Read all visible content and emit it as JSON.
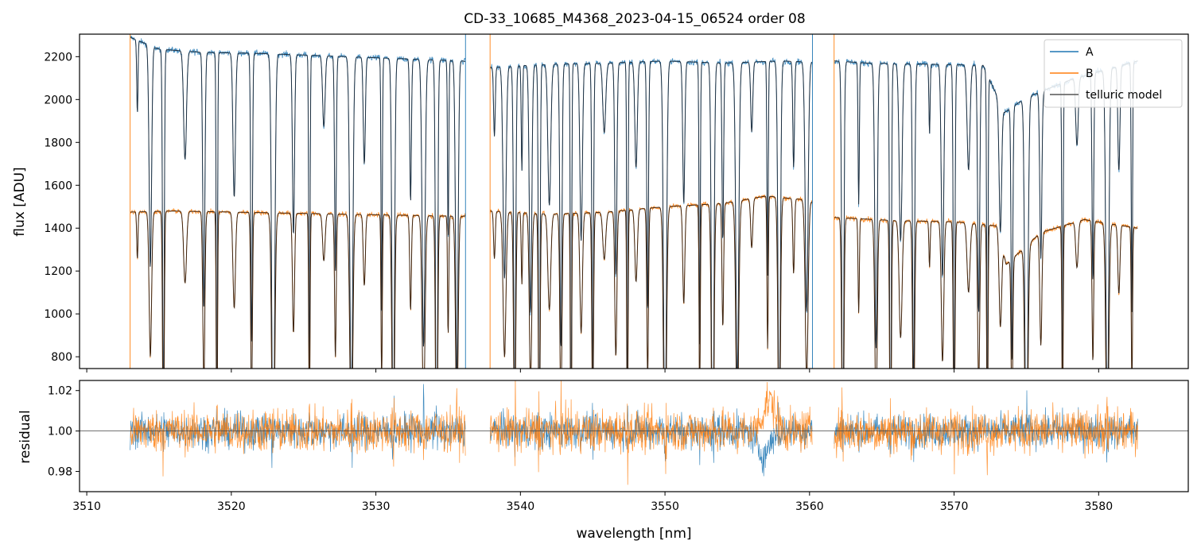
{
  "figure": {
    "title": "CD-33_10685_M4368_2023-04-15_06524  order 08"
  },
  "colors": {
    "A": "#1f77b4",
    "B": "#ff7f0e",
    "telluric_A": "#1f3040",
    "telluric_B": "#3b2412",
    "legend_telluric": "#555555",
    "reference_line": "#444444"
  },
  "chart_data": [
    {
      "type": "line",
      "title": "CD-33_10685_M4368_2023-04-15_06524  order 08",
      "xlabel": "",
      "ylabel": "flux [ADU]",
      "xlim": [
        3509.5,
        3586.2
      ],
      "ylim": [
        745,
        2305
      ],
      "y_ticks": [
        800,
        1000,
        1200,
        1400,
        1600,
        1800,
        2000,
        2200
      ],
      "grid": false,
      "legend": {
        "position": "top-right",
        "entries": [
          "A",
          "B",
          "telluric model"
        ]
      },
      "gaps_nm": [
        [
          3536.2,
          3537.9
        ],
        [
          3560.2,
          3561.7
        ]
      ],
      "series": [
        {
          "name": "A",
          "x_range": [
            3513.0,
            3582.7
          ],
          "continuum": [
            [
              3513.0,
              2290
            ],
            [
              3515.0,
              2235
            ],
            [
              3518.0,
              2220
            ],
            [
              3522.0,
              2215
            ],
            [
              3526.0,
              2205
            ],
            [
              3530.0,
              2195
            ],
            [
              3534.0,
              2185
            ],
            [
              3536.0,
              2180
            ],
            [
              3538.0,
              2150
            ],
            [
              3542.0,
              2165
            ],
            [
              3546.0,
              2170
            ],
            [
              3550.0,
              2180
            ],
            [
              3554.0,
              2170
            ],
            [
              3558.0,
              2180
            ],
            [
              3560.0,
              2175
            ],
            [
              3561.7,
              2180
            ],
            [
              3564.0,
              2170
            ],
            [
              3568.0,
              2165
            ],
            [
              3572.0,
              2160
            ],
            [
              3573.5,
              1940
            ],
            [
              3575.0,
              2010
            ],
            [
              3578.0,
              2090
            ],
            [
              3580.0,
              2130
            ],
            [
              3582.7,
              2180
            ]
          ]
        },
        {
          "name": "B",
          "x_range": [
            3513.0,
            3582.7
          ],
          "continuum": [
            [
              3513.0,
              1475
            ],
            [
              3516.0,
              1480
            ],
            [
              3520.0,
              1475
            ],
            [
              3524.0,
              1470
            ],
            [
              3528.0,
              1465
            ],
            [
              3532.0,
              1460
            ],
            [
              3536.0,
              1455
            ],
            [
              3538.0,
              1480
            ],
            [
              3542.0,
              1465
            ],
            [
              3546.0,
              1475
            ],
            [
              3550.0,
              1500
            ],
            [
              3554.0,
              1515
            ],
            [
              3557.0,
              1550
            ],
            [
              3560.0,
              1530
            ],
            [
              3561.7,
              1450
            ],
            [
              3566.0,
              1435
            ],
            [
              3570.0,
              1430
            ],
            [
              3573.0,
              1410
            ],
            [
              3573.6,
              1230
            ],
            [
              3576.0,
              1380
            ],
            [
              3579.0,
              1440
            ],
            [
              3582.7,
              1400
            ]
          ]
        }
      ],
      "absorption_lines_nm": [
        3513.5,
        3514.4,
        3515.3,
        3516.8,
        3518.1,
        3519.0,
        3520.2,
        3521.4,
        3522.9,
        3524.3,
        3525.4,
        3526.4,
        3527.2,
        3528.3,
        3529.2,
        3530.4,
        3531.2,
        3532.4,
        3533.3,
        3534.2,
        3535.0,
        3535.6,
        3538.2,
        3538.9,
        3539.6,
        3540.1,
        3540.7,
        3541.3,
        3542.0,
        3542.8,
        3543.5,
        3544.2,
        3545.0,
        3545.8,
        3546.6,
        3547.4,
        3548.0,
        3548.8,
        3550.0,
        3551.3,
        3552.4,
        3553.3,
        3554.0,
        3555.0,
        3556.0,
        3557.1,
        3557.9,
        3558.9,
        3559.8,
        3562.3,
        3563.4,
        3564.6,
        3565.6,
        3566.3,
        3567.2,
        3568.3,
        3569.2,
        3570.0,
        3571.0,
        3571.7,
        3572.3,
        3573.2,
        3574.0,
        3575.0,
        3576.0,
        3577.5,
        3578.5,
        3579.6,
        3580.6,
        3581.4,
        3582.3
      ]
    },
    {
      "type": "line",
      "xlabel": "wavelength [nm]",
      "ylabel": "residual",
      "xlim": [
        3509.5,
        3586.2
      ],
      "ylim": [
        0.97,
        1.025
      ],
      "y_ticks": [
        0.98,
        1.0,
        1.02
      ],
      "y_tick_labels": [
        "0.98",
        "1.00",
        "1.02"
      ],
      "x_ticks": [
        3510,
        3520,
        3530,
        3540,
        3550,
        3560,
        3570,
        3580
      ],
      "reference_y": 1.0,
      "grid": false,
      "series": [
        {
          "name": "A",
          "x_range": [
            3513.0,
            3582.7
          ],
          "typical_scatter": 0.008
        },
        {
          "name": "B",
          "x_range": [
            3513.0,
            3582.7
          ],
          "typical_scatter": 0.01
        }
      ]
    }
  ]
}
